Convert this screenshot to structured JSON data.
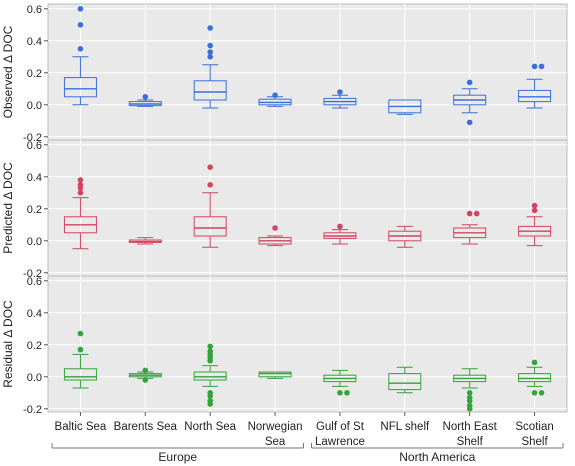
{
  "chart_data": {
    "type": "box",
    "categories": [
      "Baltic Sea",
      "Barents Sea",
      "North Sea",
      "Norwegian Sea",
      "Gulf of St Lawrence",
      "NFL shelf",
      "North East Shelf",
      "Scotian Shelf"
    ],
    "category_lines": [
      [
        "Baltic Sea"
      ],
      [
        "Barents Sea"
      ],
      [
        "North Sea"
      ],
      [
        "Norwegian",
        "Sea"
      ],
      [
        "Gulf of St",
        "Lawrence"
      ],
      [
        "NFL shelf"
      ],
      [
        "North East",
        "Shelf"
      ],
      [
        "Scotian",
        "Shelf"
      ]
    ],
    "groups": [
      {
        "label": "Europe",
        "categories": [
          "Baltic Sea",
          "Barents Sea",
          "North Sea",
          "Norwegian Sea"
        ]
      },
      {
        "label": "North America",
        "categories": [
          "Gulf of St Lawrence",
          "NFL shelf",
          "North East Shelf",
          "Scotian Shelf"
        ]
      }
    ],
    "panels": [
      {
        "ylabel": "Observed Δ DOC",
        "color": "#3A6FD8",
        "ylim": [
          -0.22,
          0.63
        ],
        "yticks": [
          -0.2,
          0.0,
          0.2,
          0.4,
          0.6
        ],
        "ytick_labels": [
          "-0.2",
          "0.0",
          "0.2",
          "0.4",
          "0.6"
        ],
        "boxes": [
          {
            "whisker_low": 0.0,
            "q1": 0.05,
            "median": 0.1,
            "q3": 0.17,
            "whisker_high": 0.3,
            "outliers": [
              0.35,
              0.5,
              0.6
            ]
          },
          {
            "whisker_low": -0.01,
            "q1": -0.005,
            "median": 0.005,
            "q3": 0.02,
            "whisker_high": 0.03,
            "outliers": [
              0.05
            ]
          },
          {
            "whisker_low": -0.02,
            "q1": 0.03,
            "median": 0.08,
            "q3": 0.15,
            "whisker_high": 0.25,
            "outliers": [
              0.3,
              0.33,
              0.37,
              0.48
            ]
          },
          {
            "whisker_low": -0.01,
            "q1": 0.0,
            "median": 0.015,
            "q3": 0.035,
            "whisker_high": 0.05,
            "outliers": [
              0.06
            ]
          },
          {
            "whisker_low": -0.02,
            "q1": 0.0,
            "median": 0.02,
            "q3": 0.04,
            "whisker_high": 0.06,
            "outliers": [
              0.08
            ]
          },
          {
            "whisker_low": -0.06,
            "q1": -0.05,
            "median": -0.01,
            "q3": 0.03,
            "whisker_high": 0.03,
            "outliers": []
          },
          {
            "whisker_low": -0.05,
            "q1": 0.0,
            "median": 0.03,
            "q3": 0.06,
            "whisker_high": 0.1,
            "outliers": [
              0.14,
              -0.11
            ]
          },
          {
            "whisker_low": -0.02,
            "q1": 0.02,
            "median": 0.05,
            "q3": 0.09,
            "whisker_high": 0.16,
            "outliers": [
              0.24,
              0.24
            ]
          }
        ]
      },
      {
        "ylabel": "Predicted Δ DOC",
        "color": "#D0455F",
        "ylim": [
          -0.22,
          0.63
        ],
        "yticks": [
          -0.2,
          0.0,
          0.2,
          0.4,
          0.6
        ],
        "ytick_labels": [
          "-0.2",
          "0.0",
          "0.2",
          "0.4",
          "0.6"
        ],
        "boxes": [
          {
            "whisker_low": -0.05,
            "q1": 0.05,
            "median": 0.1,
            "q3": 0.15,
            "whisker_high": 0.27,
            "outliers": [
              0.3,
              0.33,
              0.35,
              0.38
            ]
          },
          {
            "whisker_low": -0.02,
            "q1": -0.01,
            "median": -0.005,
            "q3": 0.005,
            "whisker_high": 0.02,
            "outliers": []
          },
          {
            "whisker_low": -0.04,
            "q1": 0.03,
            "median": 0.08,
            "q3": 0.15,
            "whisker_high": 0.3,
            "outliers": [
              0.35,
              0.46
            ]
          },
          {
            "whisker_low": -0.03,
            "q1": -0.02,
            "median": 0.0,
            "q3": 0.02,
            "whisker_high": 0.03,
            "outliers": [
              0.08
            ]
          },
          {
            "whisker_low": -0.02,
            "q1": 0.015,
            "median": 0.03,
            "q3": 0.05,
            "whisker_high": 0.07,
            "outliers": [
              0.09
            ]
          },
          {
            "whisker_low": -0.04,
            "q1": 0.0,
            "median": 0.03,
            "q3": 0.06,
            "whisker_high": 0.09,
            "outliers": []
          },
          {
            "whisker_low": -0.02,
            "q1": 0.02,
            "median": 0.05,
            "q3": 0.08,
            "whisker_high": 0.1,
            "outliers": [
              0.17,
              0.17
            ]
          },
          {
            "whisker_low": -0.03,
            "q1": 0.03,
            "median": 0.06,
            "q3": 0.09,
            "whisker_high": 0.15,
            "outliers": [
              0.19,
              0.22
            ]
          }
        ]
      },
      {
        "ylabel": "Residual Δ DOC",
        "color": "#33A33A",
        "ylim": [
          -0.22,
          0.63
        ],
        "yticks": [
          -0.2,
          0.0,
          0.2,
          0.4,
          0.6
        ],
        "ytick_labels": [
          "-0.2",
          "0.0",
          "0.2",
          "0.4",
          "0.6"
        ],
        "boxes": [
          {
            "whisker_low": -0.07,
            "q1": -0.02,
            "median": 0.0,
            "q3": 0.05,
            "whisker_high": 0.14,
            "outliers": [
              0.17,
              0.27
            ]
          },
          {
            "whisker_low": -0.01,
            "q1": 0.0,
            "median": 0.01,
            "q3": 0.02,
            "whisker_high": 0.03,
            "outliers": [
              0.04,
              -0.02
            ]
          },
          {
            "whisker_low": -0.06,
            "q1": -0.02,
            "median": 0.0,
            "q3": 0.03,
            "whisker_high": 0.07,
            "outliers": [
              0.1,
              0.12,
              0.14,
              0.16,
              0.19,
              -0.1,
              -0.12,
              -0.15,
              -0.17
            ]
          },
          {
            "whisker_low": -0.01,
            "q1": 0.0,
            "median": 0.02,
            "q3": 0.03,
            "whisker_high": 0.03,
            "outliers": []
          },
          {
            "whisker_low": -0.06,
            "q1": -0.03,
            "median": -0.01,
            "q3": 0.01,
            "whisker_high": 0.04,
            "outliers": [
              -0.1,
              -0.1
            ]
          },
          {
            "whisker_low": -0.1,
            "q1": -0.08,
            "median": -0.04,
            "q3": 0.02,
            "whisker_high": 0.06,
            "outliers": []
          },
          {
            "whisker_low": -0.07,
            "q1": -0.03,
            "median": -0.01,
            "q3": 0.01,
            "whisker_high": 0.05,
            "outliers": [
              -0.1,
              -0.13,
              -0.15,
              -0.18,
              -0.2
            ]
          },
          {
            "whisker_low": -0.06,
            "q1": -0.03,
            "median": -0.01,
            "q3": 0.02,
            "whisker_high": 0.06,
            "outliers": [
              0.09,
              -0.1,
              -0.1
            ]
          }
        ]
      }
    ],
    "grid": true,
    "legend": "none"
  }
}
